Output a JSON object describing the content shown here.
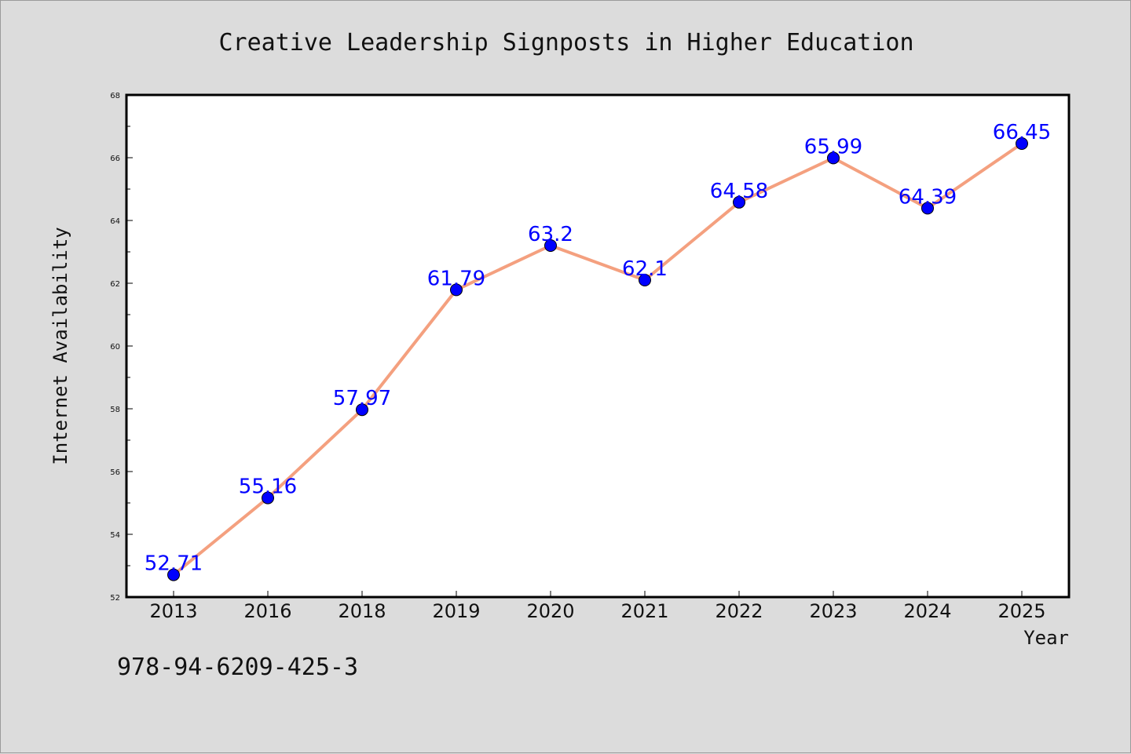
{
  "chart_data": {
    "type": "line",
    "title": "Creative Leadership Signposts in Higher Education",
    "xlabel": "Year",
    "ylabel": "Internet Availability",
    "categories": [
      "2013",
      "2016",
      "2018",
      "2019",
      "2020",
      "2021",
      "2022",
      "2023",
      "2024",
      "2025"
    ],
    "series": [
      {
        "values": [
          52.71,
          55.16,
          57.97,
          61.79,
          63.2,
          62.1,
          64.58,
          65.99,
          64.39,
          66.45
        ],
        "labels": [
          "52.71",
          "55.16",
          "57.97",
          "61.79",
          "63.2",
          "62.1",
          "64.58",
          "65.99",
          "64.39",
          "66.45"
        ],
        "line_color": "#f4a07f",
        "marker_color": "#0000ff"
      }
    ],
    "ylim": [
      52,
      68
    ],
    "yticks": [
      "52",
      "54",
      "56",
      "58",
      "60",
      "62",
      "64",
      "66",
      "68"
    ],
    "grid": false,
    "legend": "none",
    "label_color": "#0000ff"
  },
  "footer": {
    "code": "978-94-6209-425-3"
  }
}
